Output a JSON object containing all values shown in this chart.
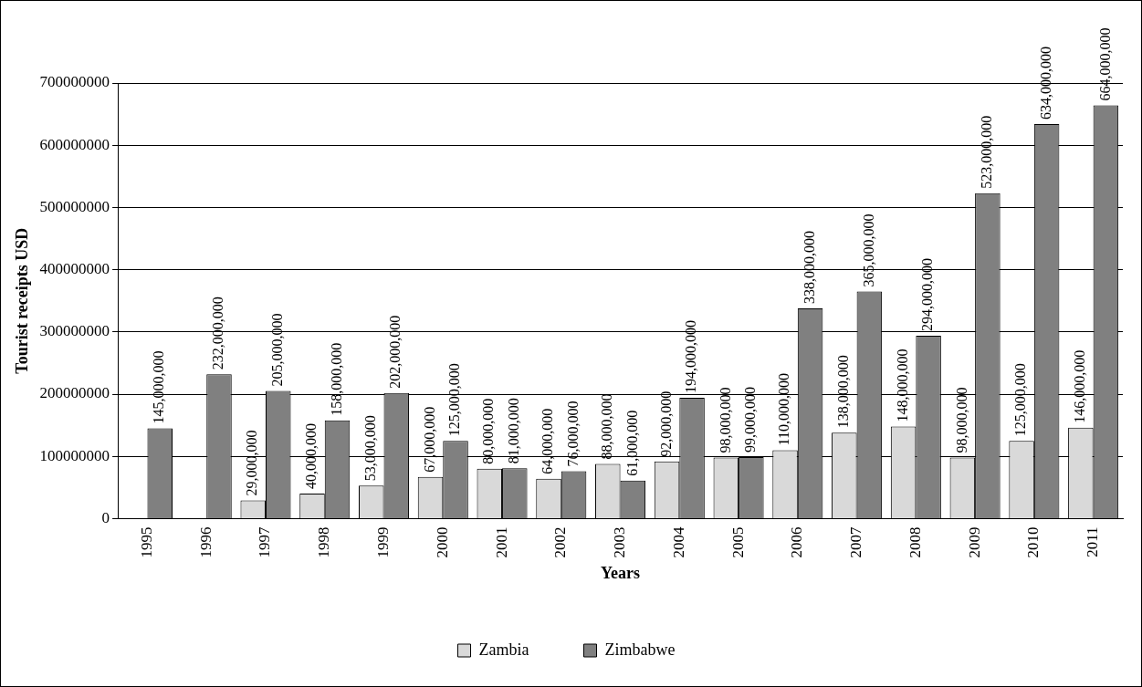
{
  "chart_data": {
    "type": "bar",
    "xlabel": "Years",
    "ylabel": "Tourist receipts USD",
    "categories": [
      "1995",
      "1996",
      "1997",
      "1998",
      "1999",
      "2000",
      "2001",
      "2002",
      "2003",
      "2004",
      "2005",
      "2006",
      "2007",
      "2008",
      "2009",
      "2010",
      "2011"
    ],
    "series": [
      {
        "name": "Zambia",
        "color": "#d9d9d9",
        "values": [
          null,
          null,
          29000000,
          40000000,
          53000000,
          67000000,
          80000000,
          64000000,
          88000000,
          92000000,
          98000000,
          110000000,
          138000000,
          148000000,
          98000000,
          125000000,
          146000000
        ],
        "value_labels": [
          null,
          null,
          "29,000,000",
          "40,000,000",
          "53,000,000",
          "67,000,000",
          "80,000,000",
          "64,000,000",
          "88,000,000",
          "92,000,000",
          "98,000,000",
          "110,000,000",
          "138,000,000",
          "148,000,000",
          "98,000,000",
          "125,000,000",
          "146,000,000"
        ]
      },
      {
        "name": "Zimbabwe",
        "color": "#808080",
        "values": [
          145000000,
          232000000,
          205000000,
          158000000,
          202000000,
          125000000,
          81000000,
          76000000,
          61000000,
          194000000,
          99000000,
          338000000,
          365000000,
          294000000,
          523000000,
          634000000,
          664000000
        ],
        "value_labels": [
          "145,000,000",
          "232,000,000",
          "205,000,000",
          "158,000,000",
          "202,000,000",
          "125,000,000",
          "81,000,000",
          "76,000,000",
          "61,000,000",
          "194,000,000",
          "99,000,000",
          "338,000,000",
          "365,000,000",
          "294,000,000",
          "523,000,000",
          "634,000,000",
          "664,000,000"
        ]
      }
    ],
    "ylim": [
      0,
      700000000
    ],
    "yticks": [
      0,
      100000000,
      200000000,
      300000000,
      400000000,
      500000000,
      600000000,
      700000000
    ],
    "grid": "y",
    "legend": "bottom"
  }
}
